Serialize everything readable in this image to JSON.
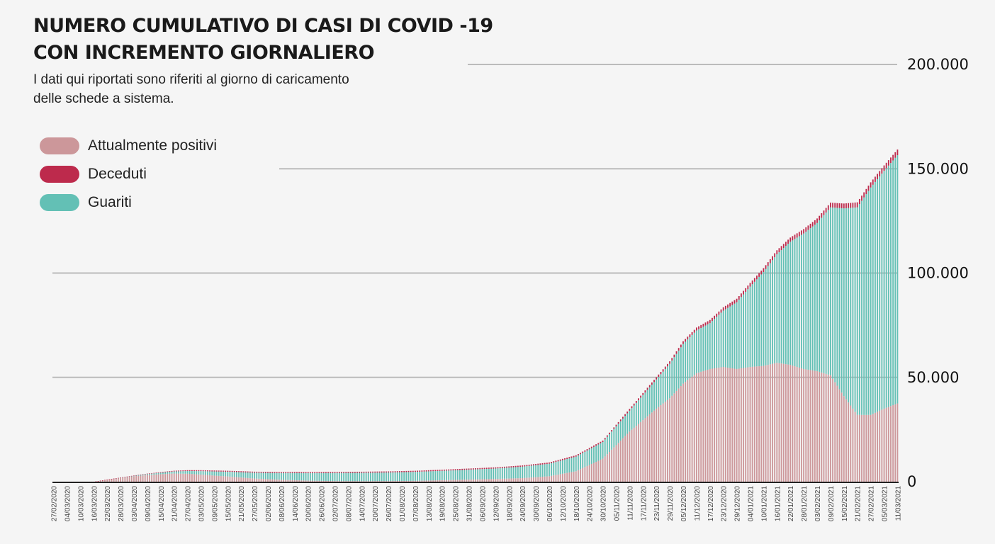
{
  "title": "NUMERO CUMULATIVO DI CASI DI COVID -19\nCON INCREMENTO GIORNALIERO",
  "subtitle": "I dati qui riportati sono riferiti al giorno di caricamento\ndelle schede a sistema.",
  "colors": {
    "background": "#f5f5f5",
    "positivi": "#cc979a",
    "deceduti": "#bd2a4c",
    "guariti": "#63c0b5",
    "grid": "#bbbbbb",
    "axis": "#222222"
  },
  "legend": [
    {
      "label": "Attualmente positivi",
      "color": "#cc979a"
    },
    {
      "label": "Deceduti",
      "color": "#bd2a4c"
    },
    {
      "label": "Guariti",
      "color": "#63c0b5"
    }
  ],
  "chart_data": {
    "type": "bar",
    "stacked": true,
    "title": "NUMERO CUMULATIVO DI CASI DI COVID -19 CON INCREMENTO GIORNALIERO",
    "ylim": [
      0,
      200000
    ],
    "yticks": [
      0,
      50000,
      100000,
      150000,
      200000
    ],
    "ytick_labels": [
      "0",
      "50.000",
      "100.000",
      "150.000",
      "200.000"
    ],
    "grid": true,
    "legend_position": "top-left",
    "start_date": "27/02/2020",
    "end_date": "11/03/2021",
    "x_tick_labels": [
      "27/02/2020",
      "04/03/2020",
      "10/03/2020",
      "16/03/2020",
      "22/03/2020",
      "28/03/2020",
      "03/04/2020",
      "09/04/2020",
      "15/04/2020",
      "21/04/2020",
      "27/04/2020",
      "03/05/2020",
      "09/05/2020",
      "15/05/2020",
      "21/05/2020",
      "27/05/2020",
      "02/06/2020",
      "08/06/2020",
      "14/06/2020",
      "20/06/2020",
      "26/06/2020",
      "02/07/2020",
      "08/07/2020",
      "14/07/2020",
      "20/07/2020",
      "26/07/2020",
      "01/08/2020",
      "07/08/2020",
      "13/08/2020",
      "19/08/2020",
      "25/08/2020",
      "31/08/2020",
      "06/09/2020",
      "12/09/2020",
      "18/09/2020",
      "24/09/2020",
      "30/09/2020",
      "06/10/2020",
      "12/10/2020",
      "18/10/2020",
      "24/10/2020",
      "30/10/2020",
      "05/11/2020",
      "11/11/2020",
      "17/11/2020",
      "23/11/2020",
      "29/11/2020",
      "05/12/2020",
      "11/12/2020",
      "17/12/2020",
      "23/12/2020",
      "29/12/2020",
      "04/01/2021",
      "10/01/2021",
      "16/01/2021",
      "22/01/2021",
      "28/01/2021",
      "03/02/2021",
      "09/02/2021",
      "15/02/2021",
      "21/02/2021",
      "27/02/2021",
      "05/03/2021",
      "11/03/2021"
    ],
    "series": [
      {
        "name": "Attualmente positivi",
        "points": [
          [
            "27/02/2020",
            0
          ],
          [
            "16/03/2020",
            0
          ],
          [
            "22/03/2020",
            1000
          ],
          [
            "28/03/2020",
            1800
          ],
          [
            "03/04/2020",
            2600
          ],
          [
            "09/04/2020",
            3200
          ],
          [
            "15/04/2020",
            3600
          ],
          [
            "21/04/2020",
            3900
          ],
          [
            "27/04/2020",
            3800
          ],
          [
            "03/05/2020",
            3400
          ],
          [
            "09/05/2020",
            2900
          ],
          [
            "15/05/2020",
            2500
          ],
          [
            "21/05/2020",
            2000
          ],
          [
            "27/05/2020",
            1500
          ],
          [
            "02/06/2020",
            1200
          ],
          [
            "08/06/2020",
            900
          ],
          [
            "14/06/2020",
            700
          ],
          [
            "20/06/2020",
            500
          ],
          [
            "26/06/2020",
            400
          ],
          [
            "02/07/2020",
            300
          ],
          [
            "14/07/2020",
            250
          ],
          [
            "26/07/2020",
            300
          ],
          [
            "07/08/2020",
            400
          ],
          [
            "19/08/2020",
            700
          ],
          [
            "31/08/2020",
            1000
          ],
          [
            "12/09/2020",
            1300
          ],
          [
            "24/09/2020",
            1700
          ],
          [
            "06/10/2020",
            2600
          ],
          [
            "18/10/2020",
            5000
          ],
          [
            "30/10/2020",
            11000
          ],
          [
            "11/11/2020",
            24000
          ],
          [
            "23/11/2020",
            35000
          ],
          [
            "29/11/2020",
            40000
          ],
          [
            "05/12/2020",
            47000
          ],
          [
            "11/12/2020",
            52000
          ],
          [
            "17/12/2020",
            54000
          ],
          [
            "23/12/2020",
            55000
          ],
          [
            "29/12/2020",
            54000
          ],
          [
            "04/01/2021",
            55000
          ],
          [
            "10/01/2021",
            55500
          ],
          [
            "16/01/2021",
            57000
          ],
          [
            "22/01/2021",
            56000
          ],
          [
            "28/01/2021",
            54000
          ],
          [
            "03/02/2021",
            53000
          ],
          [
            "09/02/2021",
            51000
          ],
          [
            "15/02/2021",
            41000
          ],
          [
            "21/02/2021",
            32000
          ],
          [
            "27/02/2021",
            32000
          ],
          [
            "05/03/2021",
            35000
          ],
          [
            "11/03/2021",
            37500
          ]
        ]
      },
      {
        "name": "Deceduti",
        "points": [
          [
            "27/02/2020",
            0
          ],
          [
            "22/03/2020",
            10
          ],
          [
            "03/04/2020",
            150
          ],
          [
            "21/04/2020",
            350
          ],
          [
            "03/05/2020",
            450
          ],
          [
            "02/06/2020",
            500
          ],
          [
            "31/08/2020",
            550
          ],
          [
            "30/09/2020",
            600
          ],
          [
            "30/10/2020",
            700
          ],
          [
            "11/11/2020",
            900
          ],
          [
            "29/11/2020",
            1200
          ],
          [
            "29/12/2020",
            1700
          ],
          [
            "28/01/2021",
            2100
          ],
          [
            "27/02/2021",
            2500
          ],
          [
            "11/03/2021",
            2700
          ]
        ]
      },
      {
        "name": "Guariti",
        "points": [
          [
            "27/02/2020",
            0
          ],
          [
            "22/03/2020",
            0
          ],
          [
            "03/04/2020",
            200
          ],
          [
            "15/04/2020",
            700
          ],
          [
            "27/04/2020",
            1300
          ],
          [
            "09/05/2020",
            2000
          ],
          [
            "27/05/2020",
            2800
          ],
          [
            "14/06/2020",
            3500
          ],
          [
            "02/07/2020",
            3900
          ],
          [
            "26/07/2020",
            4100
          ],
          [
            "19/08/2020",
            4500
          ],
          [
            "12/09/2020",
            5000
          ],
          [
            "06/10/2020",
            6000
          ],
          [
            "18/10/2020",
            7000
          ],
          [
            "30/10/2020",
            8000
          ],
          [
            "11/11/2020",
            10000
          ],
          [
            "23/11/2020",
            14000
          ],
          [
            "05/12/2020",
            19000
          ],
          [
            "17/12/2020",
            22000
          ],
          [
            "29/12/2020",
            32000
          ],
          [
            "10/01/2021",
            45000
          ],
          [
            "22/01/2021",
            59000
          ],
          [
            "03/02/2021",
            71000
          ],
          [
            "15/02/2021",
            90000
          ],
          [
            "27/02/2021",
            109000
          ],
          [
            "11/03/2021",
            119000
          ]
        ]
      }
    ]
  }
}
